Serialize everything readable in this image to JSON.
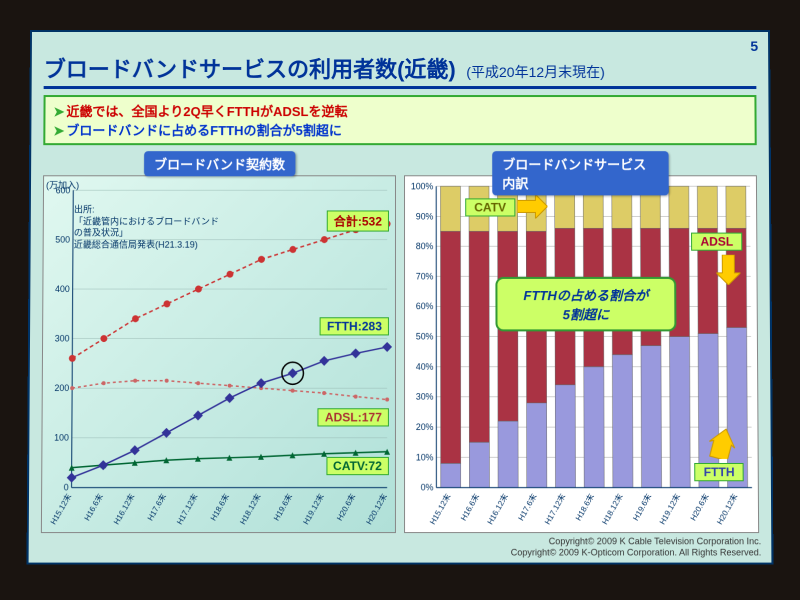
{
  "page_number": "5",
  "title": {
    "main": "ブロードバンドサービスの利用者数(近畿)",
    "sub": "(平成20年12月末現在)"
  },
  "highlight": {
    "line1": "近畿では、全国より2Q早くFTTHがADSLを逆転",
    "line2": "ブロードバンドに占めるFTTHの割合が5割超に"
  },
  "left_chart": {
    "title": "ブロードバンド契約数",
    "y_unit": "(万加入)",
    "source": {
      "l1": "出所:",
      "l2": "「近畿管内におけるブロードバンド",
      "l3": "の普及状況」",
      "l4": "近畿総合通信局発表(H21.3.19)"
    },
    "x_categories": [
      "H15.12末",
      "H16.6末",
      "H16.12末",
      "H17.6末",
      "H17.12末",
      "H18.6末",
      "H18.12末",
      "H19.6末",
      "H19.12末",
      "H20.6末",
      "H20.12末"
    ],
    "y_max": 600,
    "y_tick_step": 100,
    "series": {
      "total": {
        "values": [
          260,
          300,
          340,
          370,
          400,
          430,
          460,
          480,
          500,
          520,
          532
        ],
        "color": "#cc3333",
        "marker": "circle"
      },
      "ftth": {
        "values": [
          20,
          45,
          75,
          110,
          145,
          180,
          210,
          230,
          255,
          270,
          283
        ],
        "color": "#333399",
        "marker": "diamond"
      },
      "adsl": {
        "values": [
          200,
          210,
          215,
          215,
          210,
          205,
          200,
          195,
          190,
          183,
          177
        ],
        "color": "#cc6666",
        "marker": "small"
      },
      "catv": {
        "values": [
          40,
          45,
          50,
          55,
          58,
          60,
          62,
          65,
          68,
          70,
          72
        ],
        "color": "#006633",
        "marker": "triangle"
      }
    },
    "labels": {
      "total": "合計:532",
      "ftth": "FTTH:283",
      "adsl": "ADSL:177",
      "catv": "CATV:72"
    },
    "crossover_index": 7
  },
  "right_chart": {
    "title": "ブロードバンドサービス内訳",
    "x_categories": [
      "H15.12末",
      "H16.6末",
      "H16.12末",
      "H17.6末",
      "H17.12末",
      "H18.6末",
      "H18.12末",
      "H19.6末",
      "H19.12末",
      "H20.6末",
      "H20.12末"
    ],
    "y_max": 100,
    "y_tick_step": 10,
    "colors": {
      "ftth": "#9999dd",
      "adsl": "#aa3344",
      "catv": "#ddcc66",
      "bg": "#ffffff",
      "grid": "#888888"
    },
    "ftth_pct": [
      8,
      15,
      22,
      28,
      34,
      40,
      44,
      47,
      50,
      51,
      53
    ],
    "adsl_pct": [
      77,
      70,
      63,
      57,
      52,
      46,
      42,
      39,
      36,
      35,
      33
    ],
    "catv_pct": [
      15,
      15,
      15,
      15,
      14,
      14,
      14,
      14,
      14,
      14,
      14
    ],
    "labels": {
      "catv": "CATV",
      "adsl": "ADSL",
      "ftth": "FTTH"
    },
    "callout": "FTTHの占める割合が\n5割超に"
  },
  "copyright": {
    "l1": "Copyright© 2009 K Cable Television Corporation Inc.",
    "l2": "Copyright© 2009 K-Opticom Corporation. All Rights Reserved."
  }
}
